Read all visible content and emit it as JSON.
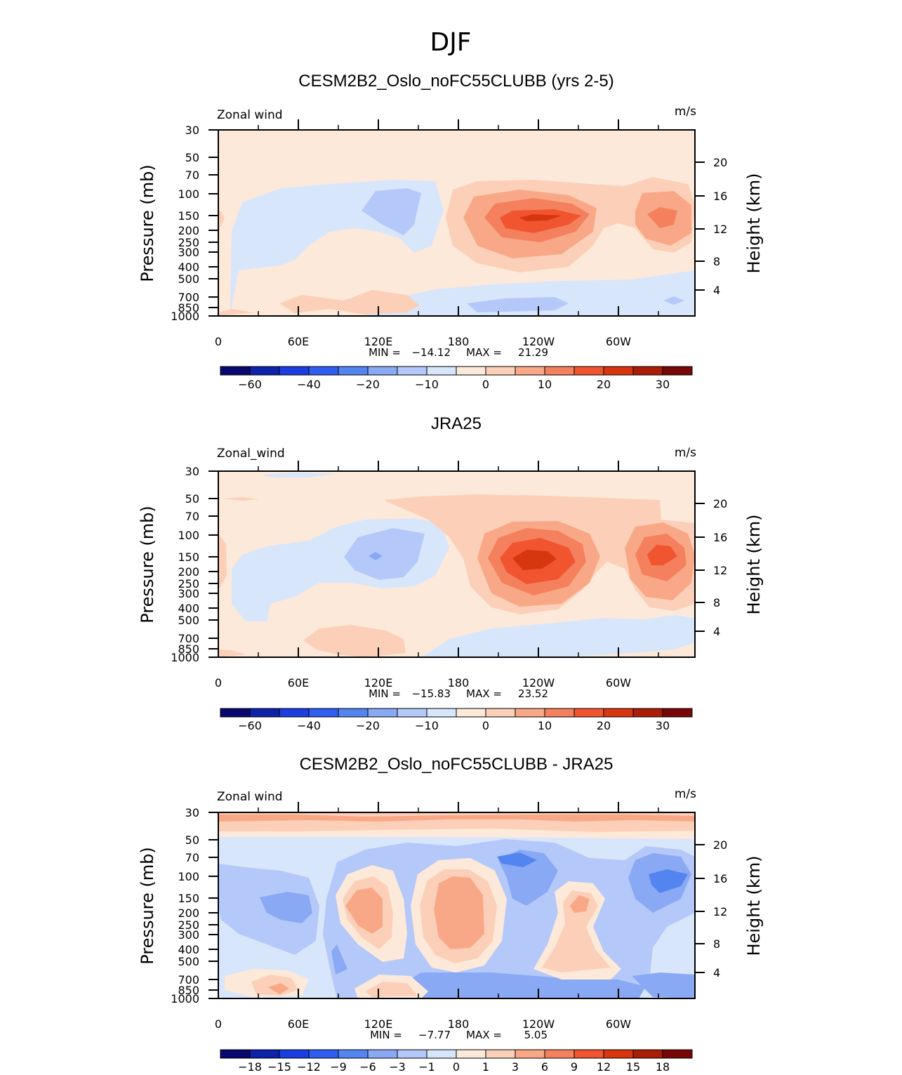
{
  "chart_data": {
    "type": "heatmap",
    "title": "DJF",
    "colors": {
      "standard": [
        "#08086e",
        "#0c22a8",
        "#1c3ee0",
        "#2f5ef0",
        "#5484f0",
        "#8aa9f5",
        "#b4c9fa",
        "#d8e6fb",
        "#fde9d9",
        "#fcd0b8",
        "#f9a887",
        "#f5805d",
        "#f05530",
        "#d8360e",
        "#aa1e08",
        "#780808"
      ],
      "diff": [
        "#08086e",
        "#0c22a8",
        "#1c3ee0",
        "#2f5ef0",
        "#5484f0",
        "#8aa9f5",
        "#b4c9fa",
        "#d8e6fb",
        "#fde9d9",
        "#fcd0b8",
        "#f9a887",
        "#f5805d",
        "#f05530",
        "#d8360e",
        "#aa1e08",
        "#780808"
      ]
    },
    "panels": [
      {
        "name": "model",
        "title": "CESM2B2_Oslo_noFC55CLUBB (yrs 2-5)",
        "left_label": "Zonal wind",
        "units": "m/s",
        "ylabel": "Pressure (mb)",
        "y2label": "Height (km)",
        "x_ticks": [
          "0",
          "60E",
          "120E",
          "180",
          "120W",
          "60W"
        ],
        "p_ticks": [
          "30",
          "50",
          "70",
          "100",
          "150",
          "200",
          "250",
          "300",
          "400",
          "500",
          "700",
          "850",
          "1000"
        ],
        "z_ticks": [
          "20",
          "16",
          "12",
          "8",
          "4"
        ],
        "min_text": "MIN =",
        "min_value": "−14.12",
        "max_text": "MAX =",
        "max_value": "21.29",
        "colorbar_labels": [
          "−60",
          "−40",
          "−20",
          "−10",
          "0",
          "10",
          "20",
          "30"
        ]
      },
      {
        "name": "obs",
        "title": "JRA25",
        "left_label": "Zonal_wind",
        "units": "m/s",
        "ylabel": "Pressure (mb)",
        "y2label": "Height (km)",
        "x_ticks": [
          "0",
          "60E",
          "120E",
          "180",
          "120W",
          "60W"
        ],
        "p_ticks": [
          "30",
          "50",
          "70",
          "100",
          "150",
          "200",
          "250",
          "300",
          "400",
          "500",
          "700",
          "850",
          "1000"
        ],
        "z_ticks": [
          "20",
          "16",
          "12",
          "8",
          "4"
        ],
        "min_text": "MIN =",
        "min_value": "−15.83",
        "max_text": "MAX =",
        "max_value": "23.52",
        "colorbar_labels": [
          "−60",
          "−40",
          "−20",
          "−10",
          "0",
          "10",
          "20",
          "30"
        ]
      },
      {
        "name": "diff",
        "title": "CESM2B2_Oslo_noFC55CLUBB - JRA25",
        "left_label": "Zonal wind",
        "units": "m/s",
        "ylabel": "Pressure (mb)",
        "y2label": "Height (km)",
        "x_ticks": [
          "0",
          "60E",
          "120E",
          "180",
          "120W",
          "60W"
        ],
        "p_ticks": [
          "30",
          "50",
          "70",
          "100",
          "150",
          "200",
          "250",
          "300",
          "400",
          "500",
          "700",
          "850",
          "1000"
        ],
        "z_ticks": [
          "20",
          "16",
          "12",
          "8",
          "4"
        ],
        "min_text": "MIN =",
        "min_value": "−7.77",
        "max_text": "MAX =",
        "max_value": "5.05",
        "colorbar_labels": [
          "−18",
          "−15",
          "−12",
          "−9",
          "−6",
          "−3",
          "−1",
          "0",
          "1",
          "3",
          "6",
          "9",
          "12",
          "15",
          "18"
        ]
      }
    ]
  }
}
